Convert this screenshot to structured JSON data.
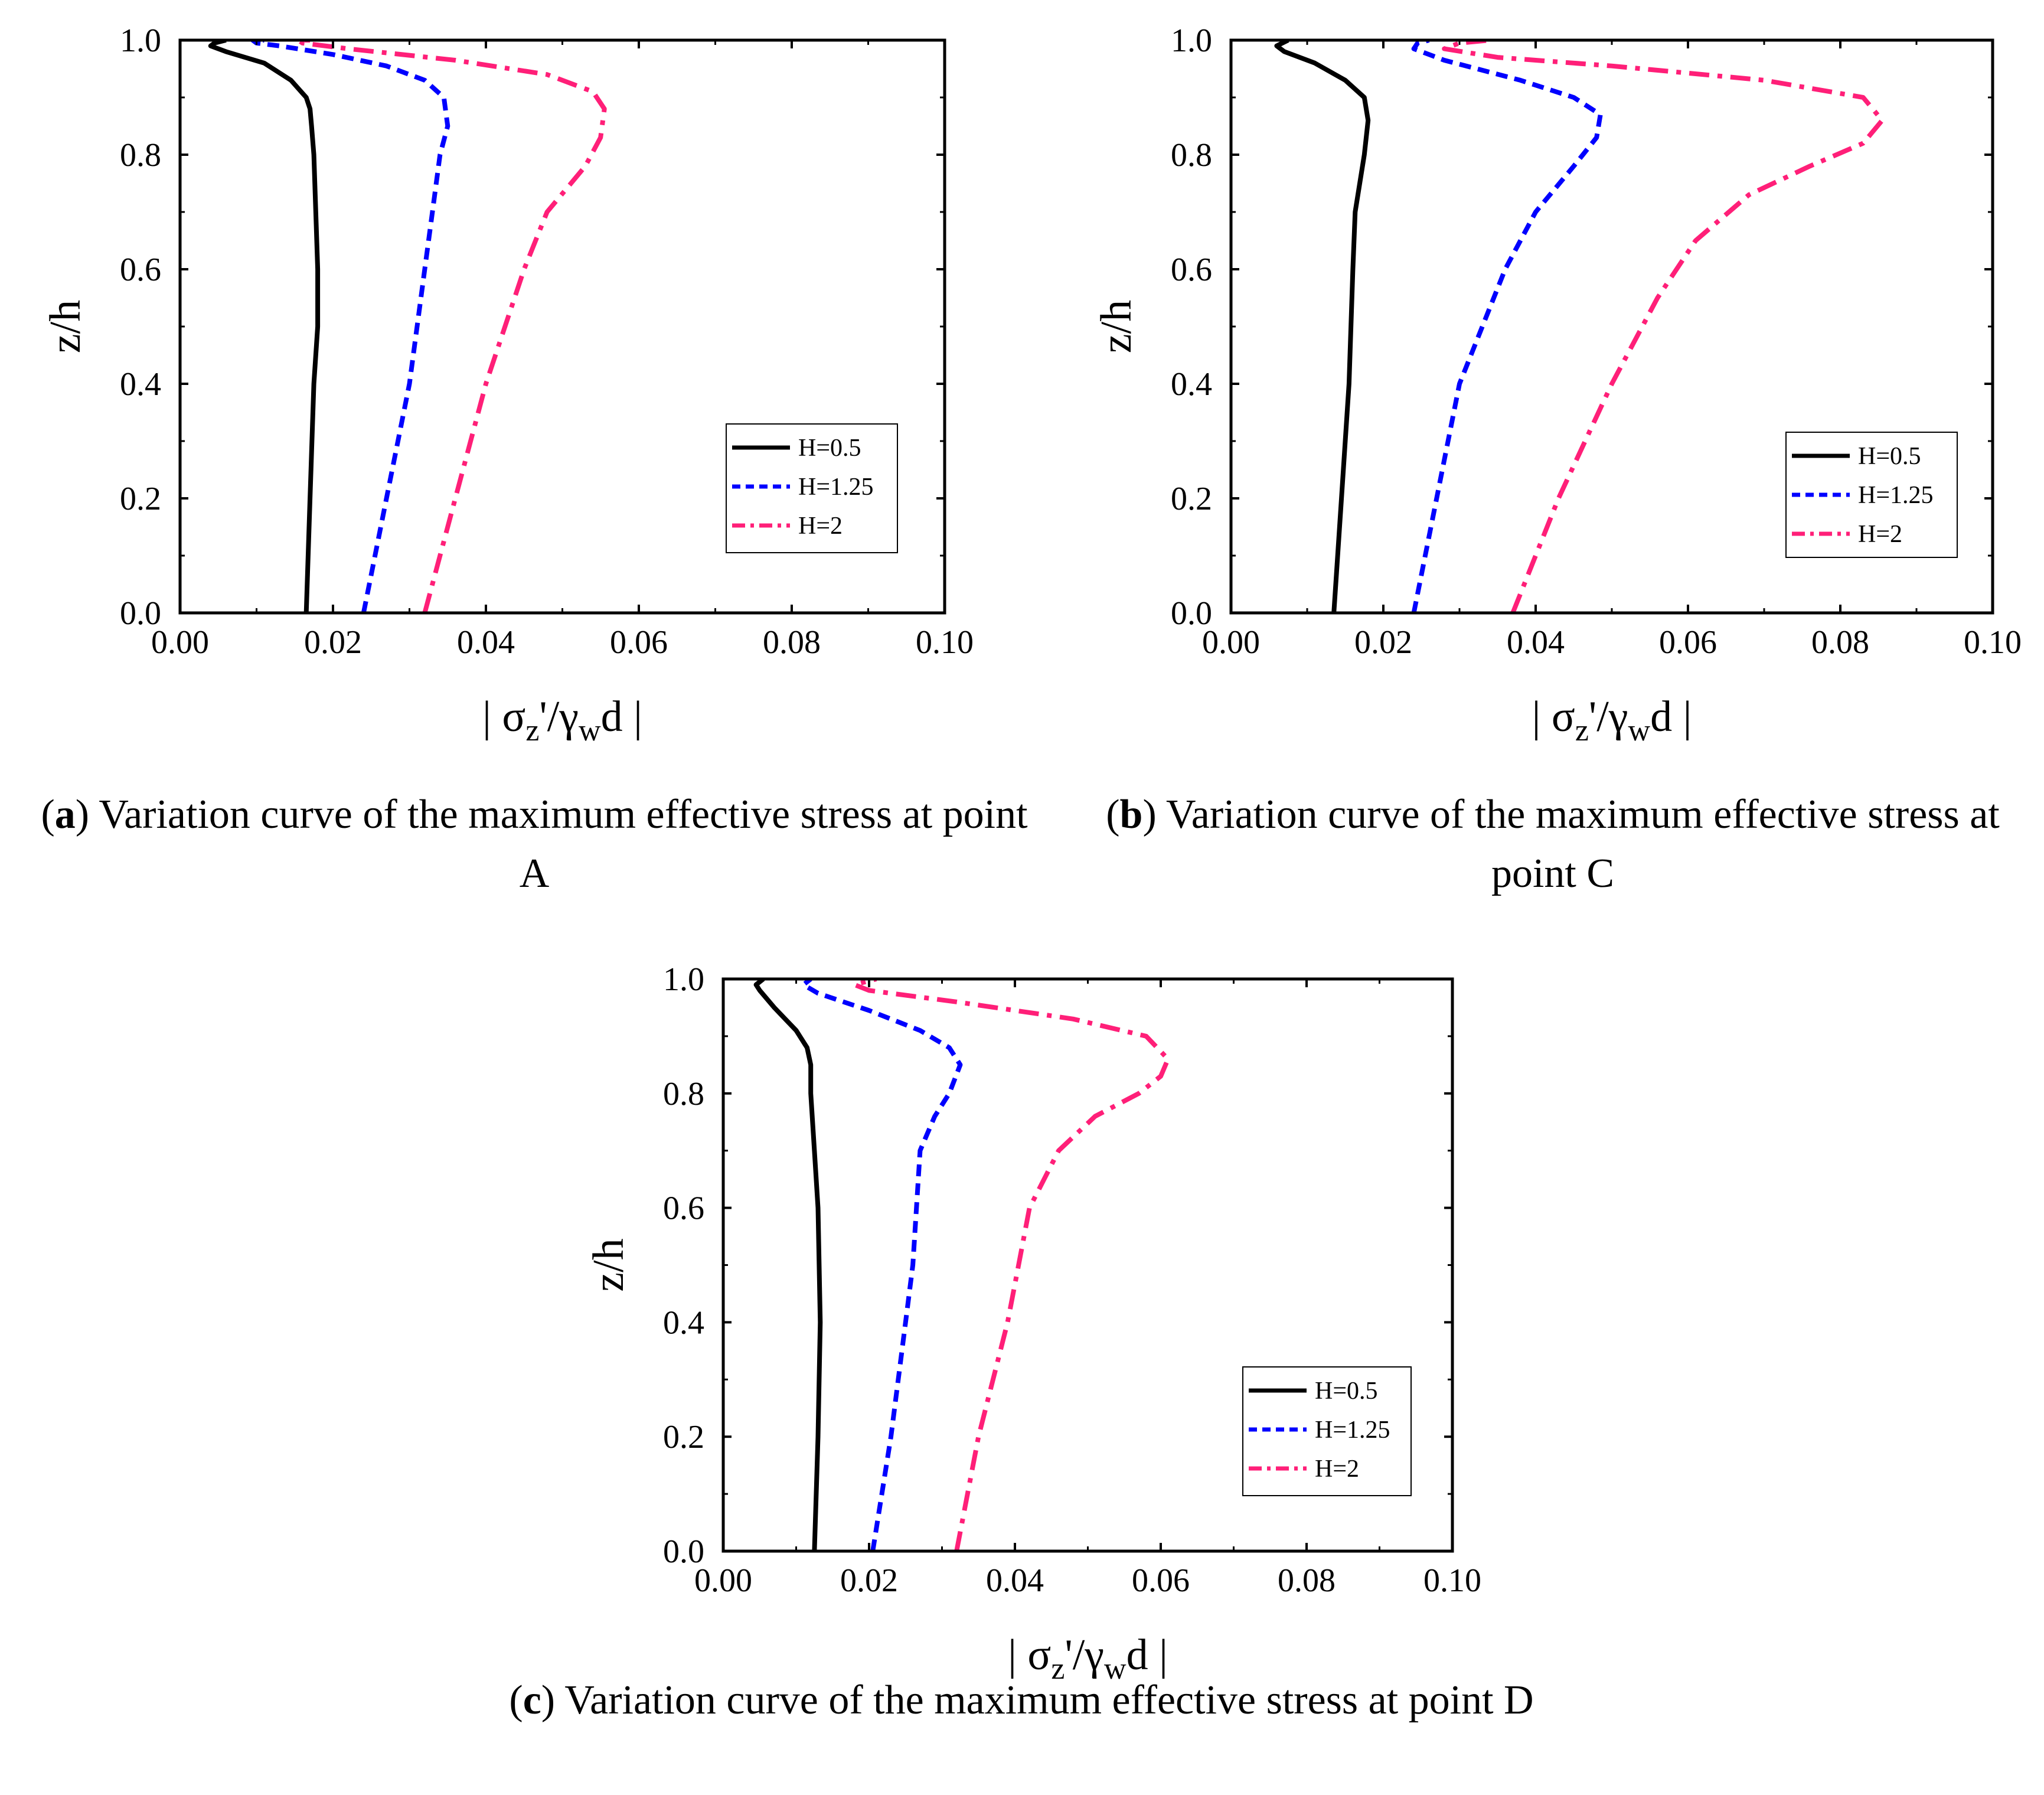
{
  "chart_data": [
    {
      "id": "a",
      "type": "line",
      "caption_letter": "a",
      "caption": "Variation curve of the maximum effective stress at point A",
      "xlabel": "|σz'/γwd|",
      "ylabel": "z/h",
      "xlim": [
        0,
        0.1
      ],
      "ylim": [
        0,
        1.0
      ],
      "xticks": [
        "0.00",
        "0.02",
        "0.04",
        "0.06",
        "0.08",
        "0.10"
      ],
      "yticks": [
        "0.0",
        "0.2",
        "0.4",
        "0.6",
        "0.8",
        "1.0"
      ],
      "legend": "top-right inner",
      "series": [
        {
          "name": "H=0.5",
          "color": "#000000",
          "style": "solid",
          "x": [
            0.0165,
            0.017,
            0.0175,
            0.018,
            0.018,
            0.0175,
            0.0172,
            0.017,
            0.0165,
            0.0145,
            0.011,
            0.006,
            0.004,
            0.0045,
            0.006
          ],
          "y": [
            0.0,
            0.2,
            0.4,
            0.5,
            0.6,
            0.8,
            0.85,
            0.88,
            0.9,
            0.93,
            0.96,
            0.98,
            0.99,
            0.995,
            1.0
          ]
        },
        {
          "name": "H=1.25",
          "color": "#0000ff",
          "style": "dash",
          "x": [
            0.024,
            0.027,
            0.03,
            0.032,
            0.033,
            0.034,
            0.035,
            0.0345,
            0.032,
            0.027,
            0.02,
            0.013,
            0.01,
            0.0095,
            0.011
          ],
          "y": [
            0.0,
            0.2,
            0.4,
            0.6,
            0.7,
            0.8,
            0.85,
            0.9,
            0.93,
            0.955,
            0.975,
            0.99,
            0.995,
            1.0,
            1.0
          ]
        },
        {
          "name": "H=2",
          "color": "#ff1f78",
          "style": "dashdot",
          "x": [
            0.032,
            0.036,
            0.04,
            0.045,
            0.048,
            0.053,
            0.055,
            0.0555,
            0.054,
            0.048,
            0.036,
            0.022,
            0.016,
            0.0155,
            0.017
          ],
          "y": [
            0.0,
            0.2,
            0.4,
            0.6,
            0.7,
            0.78,
            0.83,
            0.88,
            0.91,
            0.94,
            0.965,
            0.985,
            0.995,
            1.0,
            1.0
          ]
        }
      ],
      "legend_entries": [
        "H=0.5",
        "H=1.25",
        "H=2"
      ]
    },
    {
      "id": "b",
      "type": "line",
      "caption_letter": "b",
      "caption": "Variation curve of the maximum effective stress at point C",
      "xlabel": "|σz'/γwd|",
      "ylabel": "z/h",
      "xlim": [
        0,
        0.1
      ],
      "ylim": [
        0,
        1.0
      ],
      "xticks": [
        "0.00",
        "0.02",
        "0.04",
        "0.06",
        "0.08",
        "0.10"
      ],
      "yticks": [
        "0.0",
        "0.2",
        "0.4",
        "0.6",
        "0.8",
        "1.0"
      ],
      "legend": "right inner",
      "series": [
        {
          "name": "H=0.5",
          "color": "#000000",
          "style": "solid",
          "x": [
            0.0135,
            0.0145,
            0.0155,
            0.016,
            0.0163,
            0.0175,
            0.018,
            0.0175,
            0.015,
            0.011,
            0.007,
            0.006,
            0.0075
          ],
          "y": [
            0.0,
            0.2,
            0.4,
            0.6,
            0.7,
            0.8,
            0.86,
            0.9,
            0.93,
            0.96,
            0.98,
            0.99,
            1.0
          ]
        },
        {
          "name": "H=1.25",
          "color": "#0000ff",
          "style": "dash",
          "x": [
            0.024,
            0.027,
            0.03,
            0.033,
            0.036,
            0.04,
            0.045,
            0.048,
            0.0485,
            0.045,
            0.038,
            0.028,
            0.024,
            0.0245,
            0.026
          ],
          "y": [
            0.0,
            0.2,
            0.4,
            0.5,
            0.6,
            0.7,
            0.78,
            0.83,
            0.87,
            0.9,
            0.93,
            0.965,
            0.985,
            0.995,
            1.0
          ]
        },
        {
          "name": "H=2",
          "color": "#ff1f78",
          "style": "dashdot",
          "x": [
            0.037,
            0.043,
            0.05,
            0.056,
            0.061,
            0.068,
            0.076,
            0.083,
            0.0855,
            0.083,
            0.07,
            0.05,
            0.035,
            0.028,
            0.03,
            0.034
          ],
          "y": [
            0.0,
            0.2,
            0.4,
            0.55,
            0.65,
            0.73,
            0.78,
            0.82,
            0.86,
            0.9,
            0.93,
            0.955,
            0.97,
            0.985,
            0.995,
            1.0
          ]
        }
      ],
      "legend_entries": [
        "H=0.5",
        "H=1.25",
        "H=2"
      ]
    },
    {
      "id": "c",
      "type": "line",
      "caption_letter": "c",
      "caption": "Variation curve of the maximum effective stress at point D",
      "xlabel": "|σz'/γwd|",
      "ylabel": "z/h",
      "xlim": [
        0,
        0.1
      ],
      "ylim": [
        0,
        1.0
      ],
      "xticks": [
        "0.00",
        "0.02",
        "0.04",
        "0.06",
        "0.08",
        "0.10"
      ],
      "yticks": [
        "0.0",
        "0.2",
        "0.4",
        "0.6",
        "0.8",
        "1.0"
      ],
      "legend": "bottom-right inner",
      "series": [
        {
          "name": "H=0.5",
          "color": "#000000",
          "style": "solid",
          "x": [
            0.0125,
            0.013,
            0.0133,
            0.013,
            0.0125,
            0.012,
            0.012,
            0.0115,
            0.01,
            0.007,
            0.005,
            0.0045,
            0.0055
          ],
          "y": [
            0.0,
            0.2,
            0.4,
            0.6,
            0.7,
            0.8,
            0.85,
            0.88,
            0.91,
            0.95,
            0.98,
            0.99,
            1.0
          ]
        },
        {
          "name": "H=1.25",
          "color": "#0000ff",
          "style": "dash",
          "x": [
            0.0205,
            0.023,
            0.025,
            0.026,
            0.027,
            0.029,
            0.031,
            0.0325,
            0.031,
            0.027,
            0.02,
            0.013,
            0.011,
            0.012
          ],
          "y": [
            0.0,
            0.2,
            0.4,
            0.5,
            0.7,
            0.76,
            0.8,
            0.85,
            0.88,
            0.91,
            0.945,
            0.975,
            0.99,
            1.0
          ]
        },
        {
          "name": "H=2",
          "color": "#ff1f78",
          "style": "dashdot",
          "x": [
            0.032,
            0.035,
            0.039,
            0.0405,
            0.042,
            0.046,
            0.051,
            0.057,
            0.06,
            0.061,
            0.058,
            0.048,
            0.032,
            0.02,
            0.018,
            0.021
          ],
          "y": [
            0.0,
            0.2,
            0.4,
            0.5,
            0.6,
            0.7,
            0.76,
            0.8,
            0.83,
            0.86,
            0.9,
            0.93,
            0.96,
            0.98,
            0.99,
            1.0
          ]
        }
      ],
      "legend_entries": [
        "H=0.5",
        "H=1.25",
        "H=2"
      ]
    }
  ]
}
